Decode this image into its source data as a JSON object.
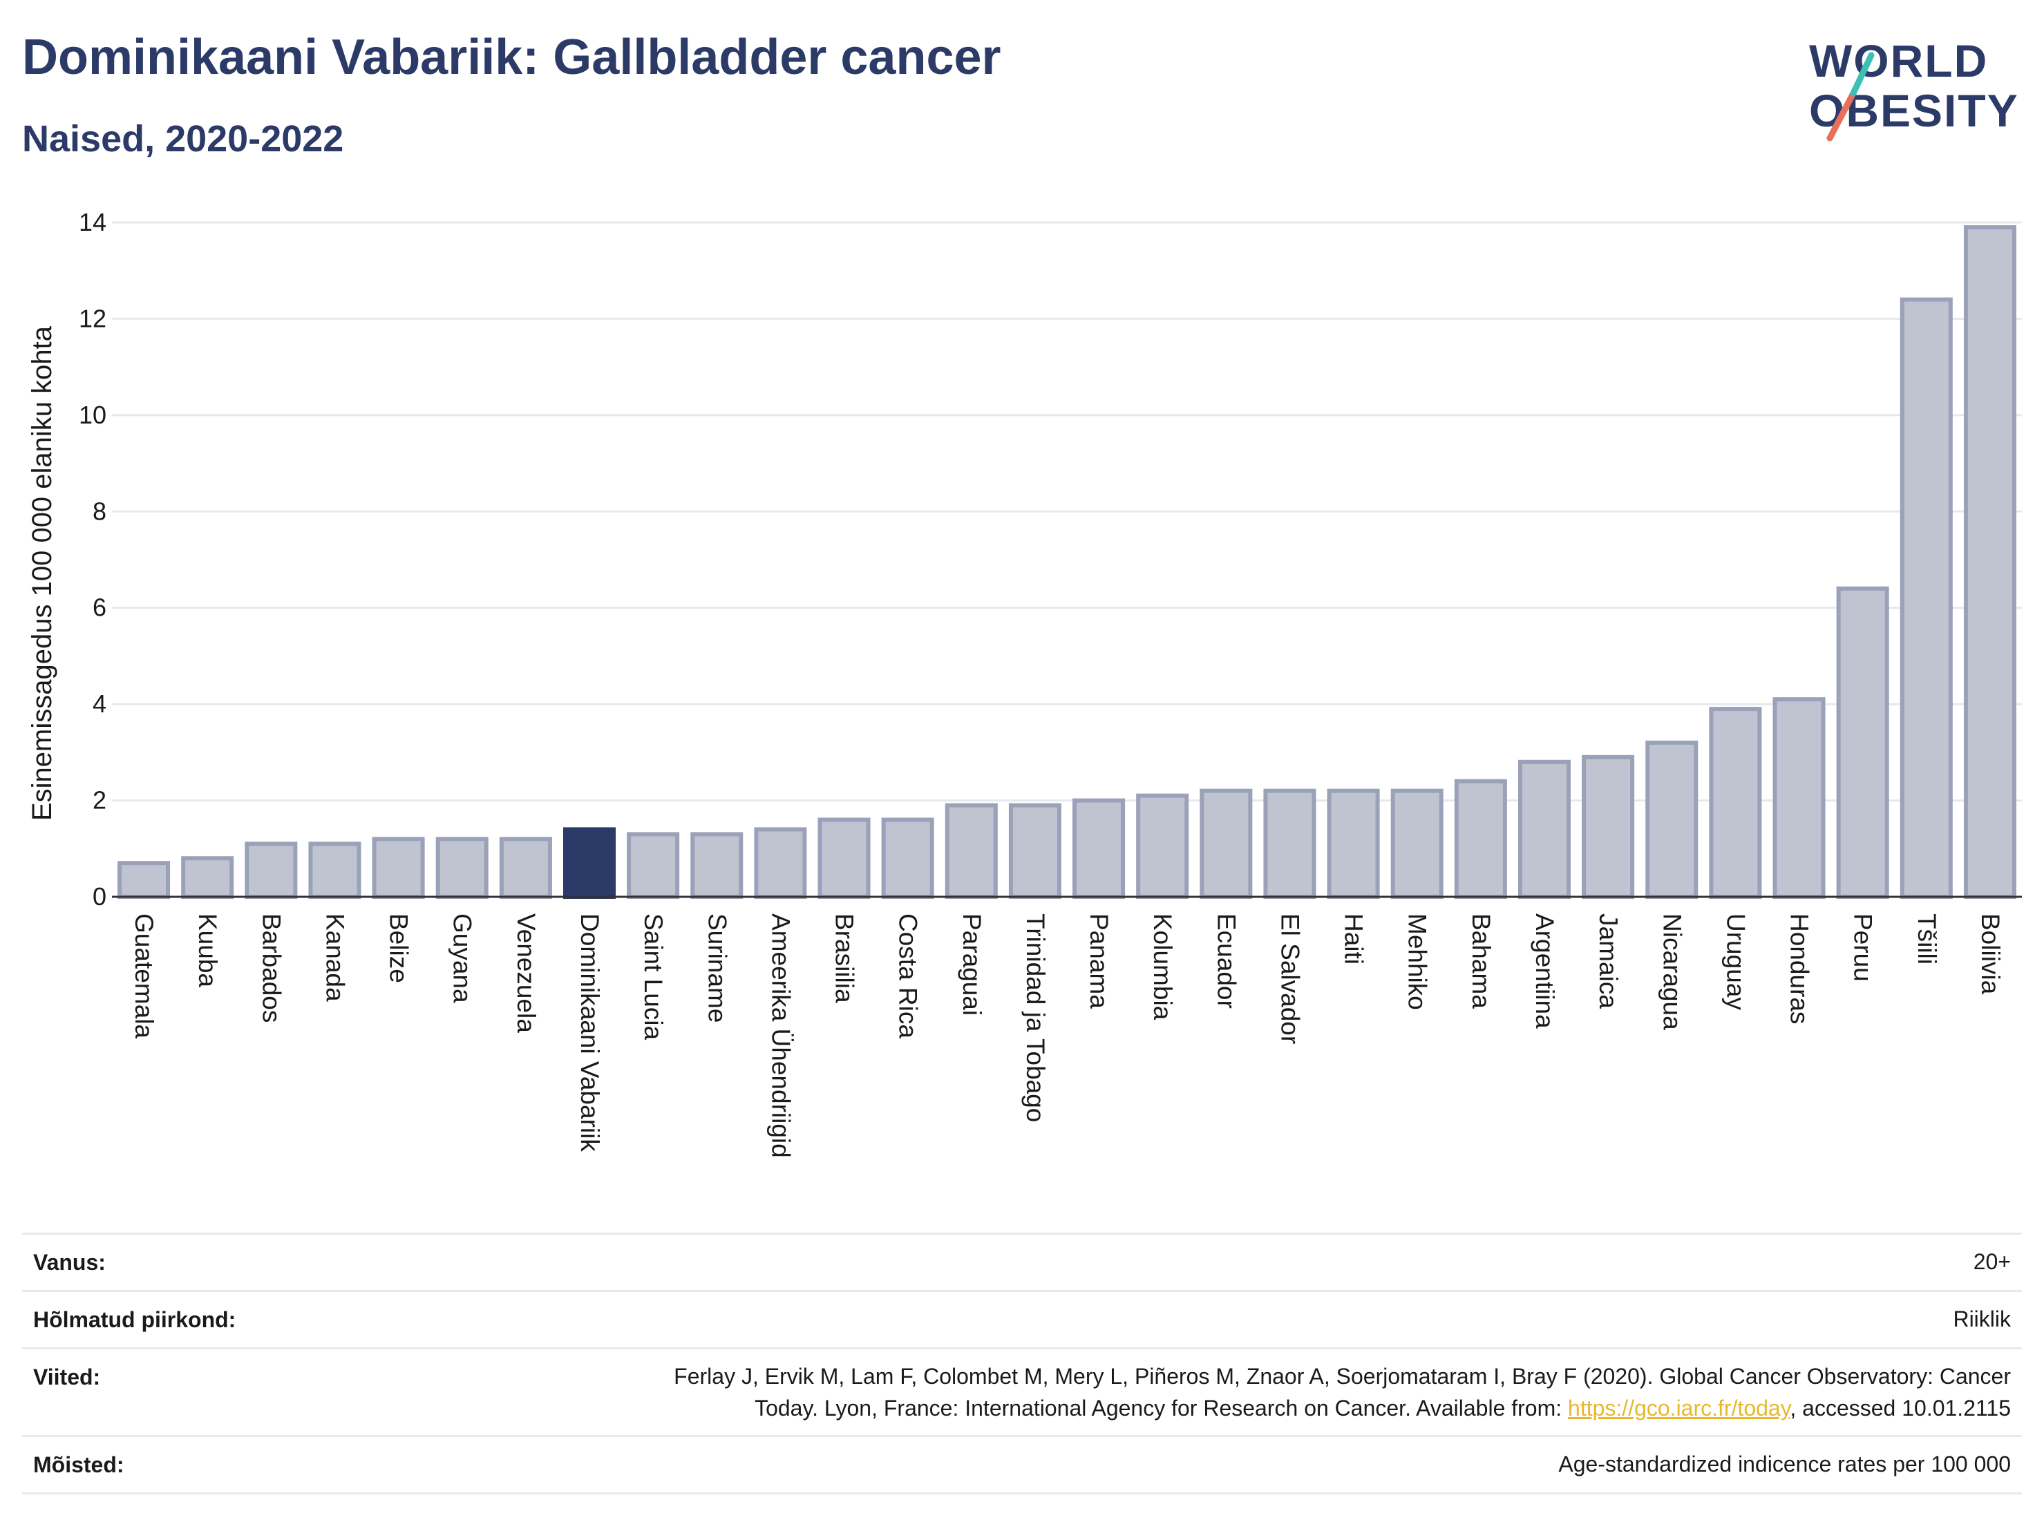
{
  "title": "Dominikaani Vabariik: Gallbladder cancer",
  "subtitle": "Naised, 2020-2022",
  "logo": {
    "line1": "WORLD",
    "line2": "OBESITY"
  },
  "colors": {
    "highlight": "#2b3a67",
    "bar_fill": "#c0c4d0",
    "bar_stroke": "#9aa1b8",
    "title": "#2b3a67",
    "link": "#e8b82a"
  },
  "chart_data": {
    "type": "bar",
    "ylabel": "Esinemissagedus 100 000 elaniku kohta",
    "ylim": [
      0,
      14
    ],
    "yticks": [
      0,
      2,
      4,
      6,
      8,
      10,
      12,
      14
    ],
    "grid": true,
    "highlight": "Dominikaani Vabariik",
    "categories": [
      "Guatemala",
      "Kuuba",
      "Barbados",
      "Kanada",
      "Belize",
      "Guyana",
      "Venezuela",
      "Dominikaani Vabariik",
      "Saint Lucia",
      "Suriname",
      "Ameerika Ühendriigid",
      "Brasiilia",
      "Costa Rica",
      "Paraguai",
      "Trinidad ja Tobago",
      "Panama",
      "Kolumbia",
      "Ecuador",
      "El Salvador",
      "Haiti",
      "Mehhiko",
      "Bahama",
      "Argentiina",
      "Jamaica",
      "Nicaragua",
      "Uruguay",
      "Honduras",
      "Peruu",
      "Tšiili",
      "Boliivia"
    ],
    "values": [
      0.7,
      0.8,
      1.1,
      1.1,
      1.2,
      1.2,
      1.2,
      1.4,
      1.3,
      1.3,
      1.4,
      1.6,
      1.6,
      1.9,
      1.9,
      2.0,
      2.1,
      2.2,
      2.2,
      2.2,
      2.2,
      2.4,
      2.8,
      2.9,
      3.2,
      3.9,
      4.1,
      6.4,
      12.4,
      13.9
    ]
  },
  "info": [
    {
      "label": "Vanus:",
      "value": "20+"
    },
    {
      "label": "Hõlmatud piirkond:",
      "value": "Riiklik"
    },
    {
      "label": "Viited:",
      "value_line1": "Ferlay J, Ervik M, Lam F, Colombet M, Mery L, Piñeros M, Znaor A, Soerjomataram I, Bray F (2020). Global Cancer Observatory: Cancer",
      "value_line2_pre": "Today. Lyon, France: International Agency for Research on Cancer. Available from: ",
      "link": "https://gco.iarc.fr/today",
      "value_line2_post": ", accessed 10.01.2115"
    },
    {
      "label": "Mõisted:",
      "value": "Age-standardized indicence rates per 100 000"
    }
  ]
}
